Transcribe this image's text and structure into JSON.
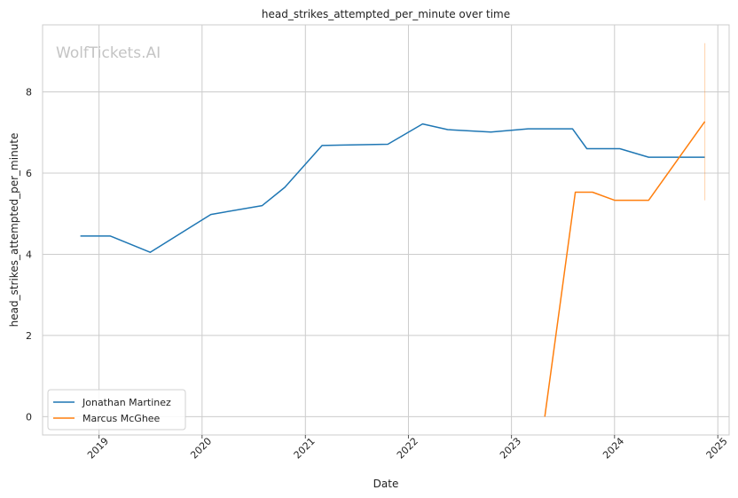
{
  "chart_data": {
    "type": "line",
    "title": "head_strikes_attempted_per_minute over time",
    "xlabel": "Date",
    "ylabel": "head_strikes_attempted_per_minute",
    "watermark": "WolfTickets.AI",
    "xlim": [
      "2018-06-15",
      "2025-02-10"
    ],
    "ylim": [
      -0.45,
      9.65
    ],
    "x_ticks": [
      "2019-01-01",
      "2020-01-01",
      "2021-01-01",
      "2022-01-01",
      "2023-01-01",
      "2024-01-01",
      "2025-01-01"
    ],
    "x_tick_labels": [
      "2019",
      "2020",
      "2021",
      "2022",
      "2023",
      "2024",
      "2025"
    ],
    "y_ticks": [
      0,
      2,
      4,
      6,
      8
    ],
    "y_tick_labels": [
      "0",
      "2",
      "4",
      "6",
      "8"
    ],
    "grid": true,
    "legend_position": "lower-left",
    "series": [
      {
        "name": "Jonathan Martinez",
        "color": "#1f77b4",
        "points": [
          [
            "2018-10-27",
            4.45
          ],
          [
            "2019-02-10",
            4.45
          ],
          [
            "2019-07-01",
            4.05
          ],
          [
            "2020-02-01",
            4.98
          ],
          [
            "2020-08-01",
            5.2
          ],
          [
            "2020-10-20",
            5.65
          ],
          [
            "2021-03-01",
            6.68
          ],
          [
            "2021-10-20",
            6.71
          ],
          [
            "2022-02-20",
            7.21
          ],
          [
            "2022-05-20",
            7.07
          ],
          [
            "2022-10-20",
            7.01
          ],
          [
            "2023-03-01",
            7.09
          ],
          [
            "2023-08-05",
            7.09
          ],
          [
            "2023-09-25",
            6.6
          ],
          [
            "2024-01-20",
            6.6
          ],
          [
            "2024-05-01",
            6.39
          ],
          [
            "2024-11-16",
            6.39
          ]
        ]
      },
      {
        "name": "Marcus McGhee",
        "color": "#ff7f0e",
        "points": [
          [
            "2023-04-29",
            0
          ],
          [
            "2023-08-15",
            5.53
          ],
          [
            "2023-10-15",
            5.53
          ],
          [
            "2024-01-01",
            5.33
          ],
          [
            "2024-05-01",
            5.33
          ],
          [
            "2024-11-16",
            7.27
          ]
        ],
        "error_bar": {
          "x": "2024-11-16",
          "low": 5.33,
          "high": 9.2
        }
      }
    ]
  }
}
